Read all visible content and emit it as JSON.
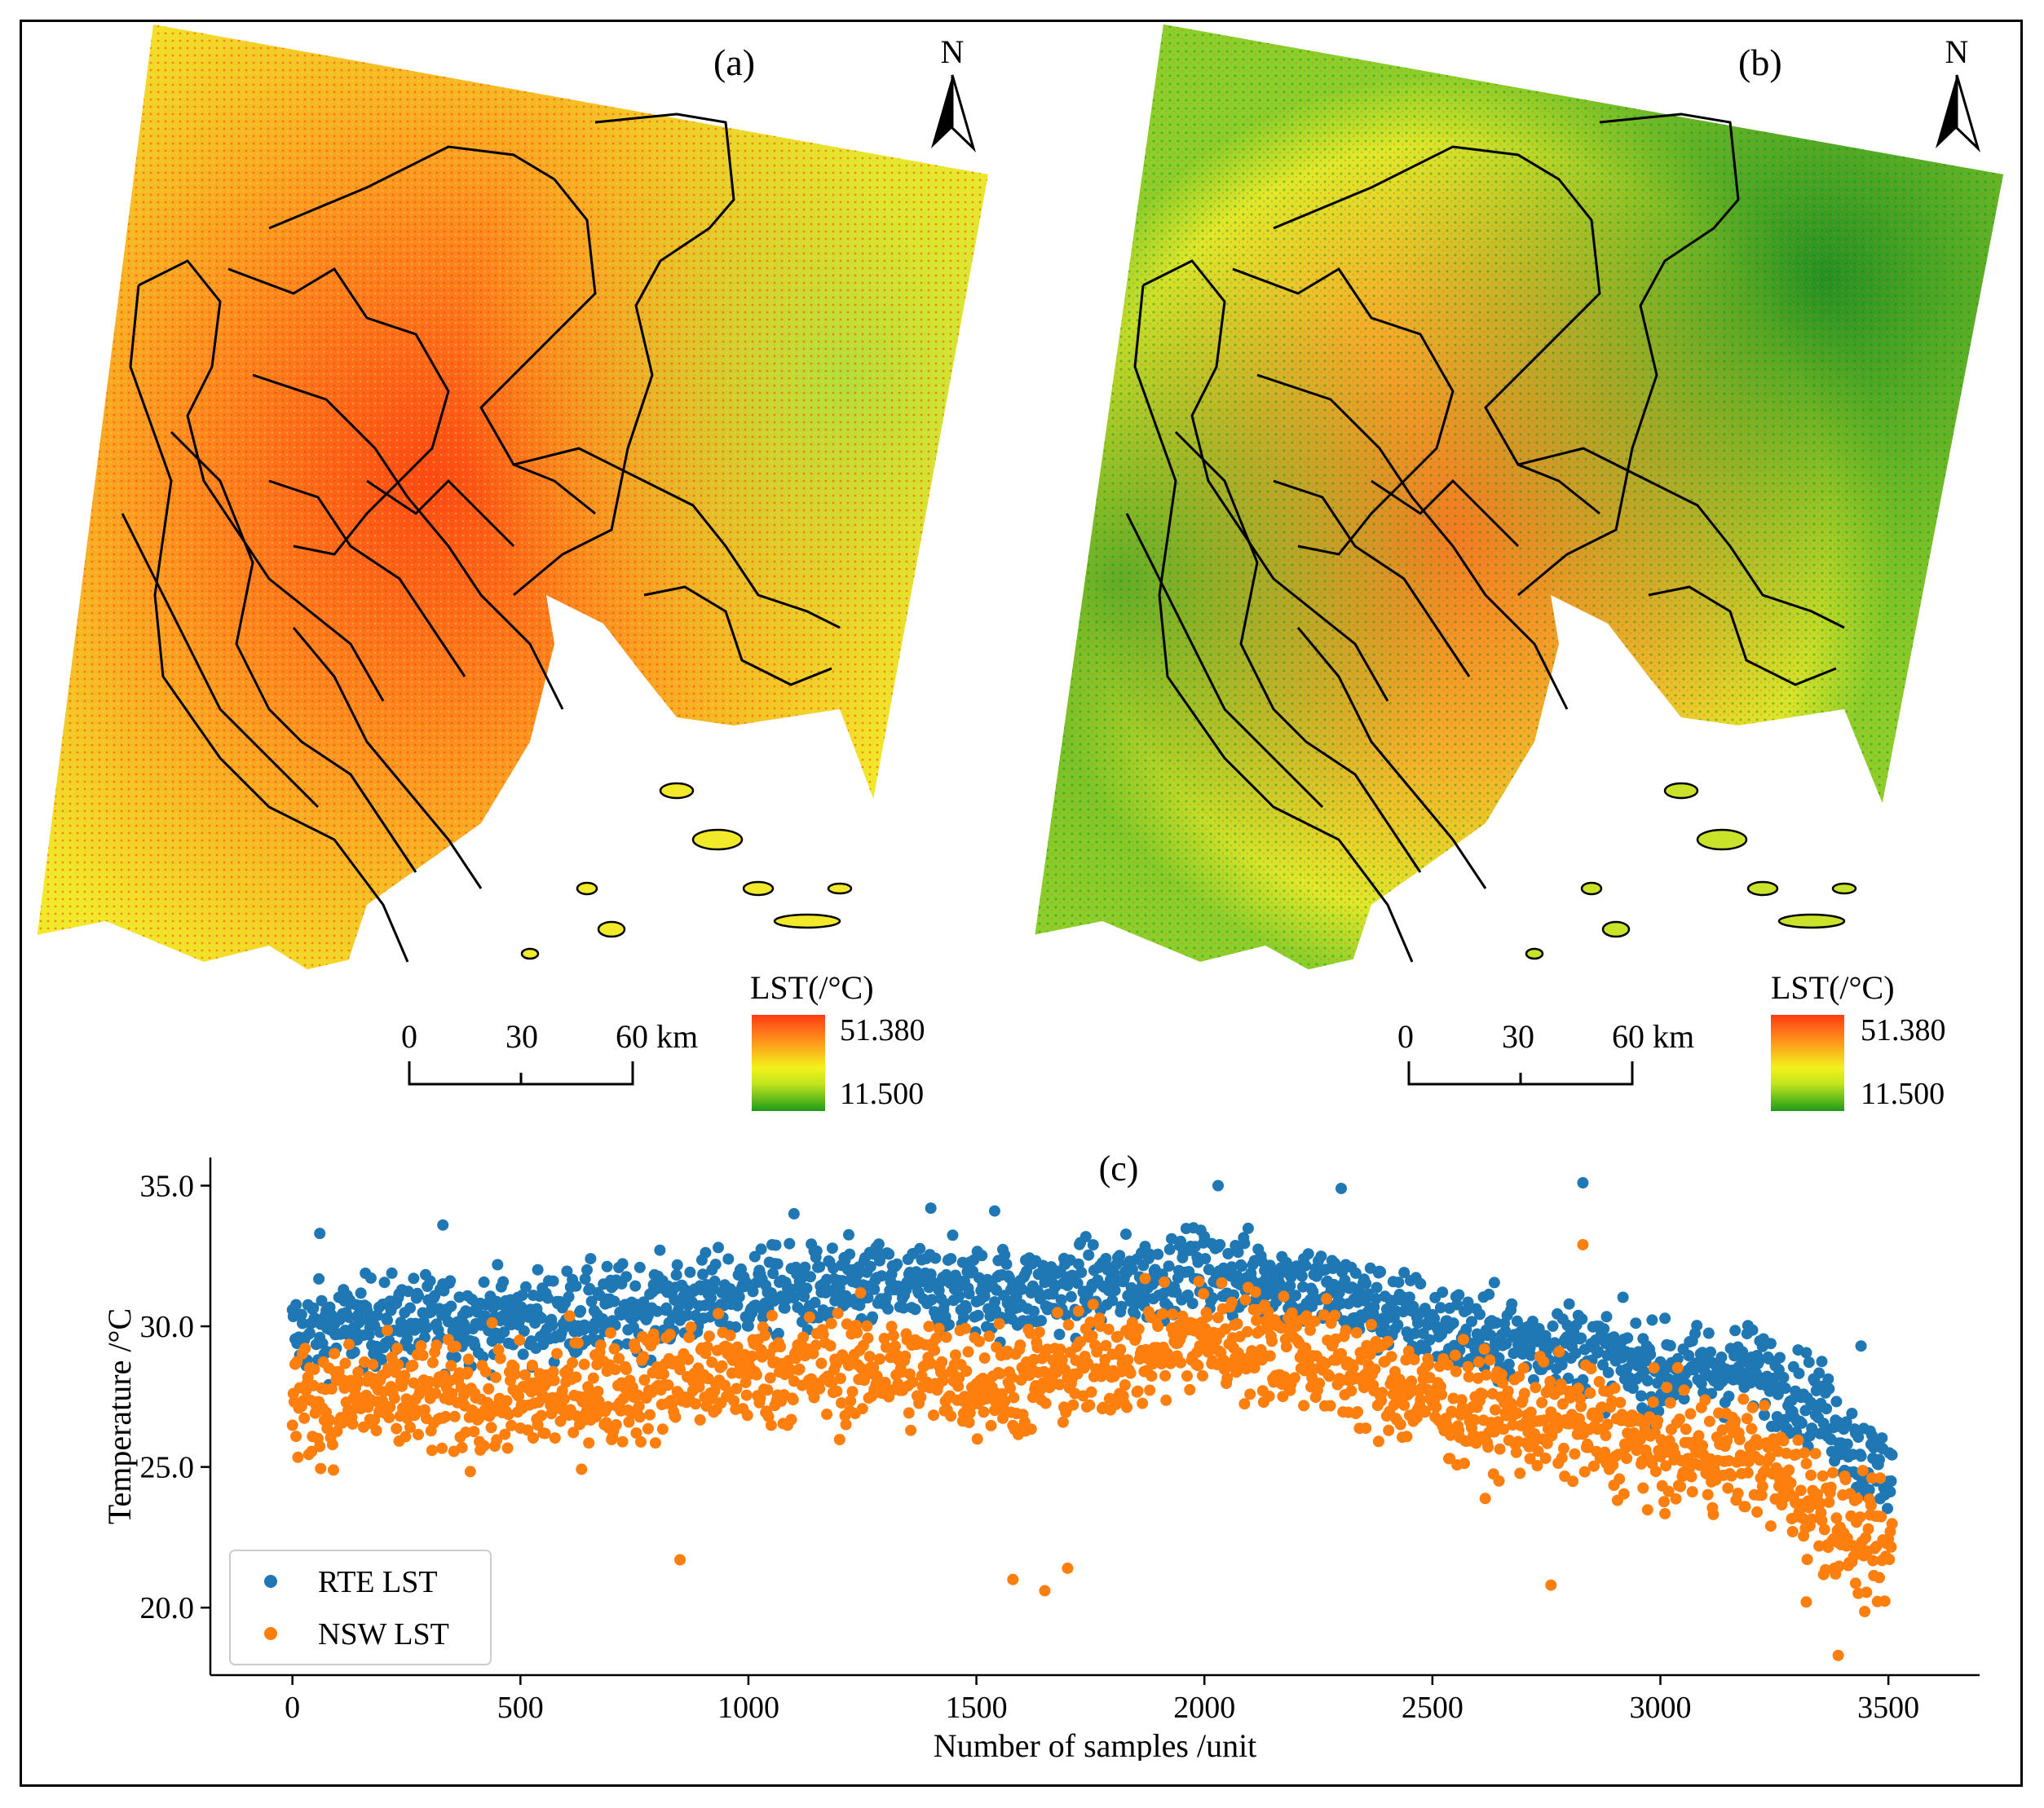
{
  "figure": {
    "panel_a": {
      "label": "(a)",
      "north_label": "N",
      "scale_ticks": [
        "0",
        "30",
        "60 km"
      ],
      "legend_title": "LST(/°C)",
      "legend_max": "51.380",
      "legend_min": "11.500",
      "colors": {
        "hot": "#ff4a14",
        "mid": "#f2e92a",
        "cool": "#7dc81e"
      }
    },
    "panel_b": {
      "label": "(b)",
      "north_label": "N",
      "scale_ticks": [
        "0",
        "30",
        "60 km"
      ],
      "legend_title": "LST(/°C)",
      "legend_max": "51.380",
      "legend_min": "11.500",
      "colors": {
        "hot": "#f47a22",
        "mid": "#dfe82a",
        "cool": "#1f8d22"
      }
    }
  },
  "chart_data": {
    "type": "scatter",
    "title": "(c)",
    "xlabel": "Number of samples /unit",
    "ylabel": "Temperature /°C",
    "xlim": [
      -180,
      3700
    ],
    "ylim": [
      17.6,
      36.0
    ],
    "xticks": [
      0,
      500,
      1000,
      1500,
      2000,
      2500,
      3000,
      3500
    ],
    "yticks": [
      20.0,
      25.0,
      30.0,
      35.0
    ],
    "ytick_labels": [
      "20.0",
      "25.0",
      "30.0",
      "35.0"
    ],
    "legend_position": "lower-left",
    "series": [
      {
        "name": "RTE LST",
        "color": "#1f77b4",
        "trend_x": [
          0,
          200,
          500,
          800,
          1000,
          1300,
          1600,
          1800,
          2000,
          2200,
          2400,
          2600,
          2800,
          3000,
          3200,
          3350,
          3450,
          3500
        ],
        "trend_y": [
          29.8,
          30.2,
          30.3,
          30.7,
          31.2,
          31.4,
          31.2,
          31.5,
          31.9,
          31.6,
          30.6,
          29.6,
          29.3,
          28.4,
          28.5,
          27.2,
          25.2,
          24.8
        ],
        "spread": 1.4,
        "extremes": [
          [
            60,
            33.3
          ],
          [
            330,
            33.6
          ],
          [
            1100,
            34.0
          ],
          [
            1400,
            34.2
          ],
          [
            1540,
            34.1
          ],
          [
            2030,
            35.0
          ],
          [
            2300,
            34.9
          ],
          [
            2830,
            35.1
          ],
          [
            3440,
            29.3
          ]
        ]
      },
      {
        "name": "NSW LST",
        "color": "#ff7f0e",
        "trend_x": [
          0,
          200,
          500,
          800,
          1000,
          1300,
          1600,
          1800,
          2000,
          2200,
          2400,
          2600,
          2800,
          3000,
          3200,
          3350,
          3450,
          3500
        ],
        "trend_y": [
          27.3,
          27.4,
          27.3,
          28.0,
          28.4,
          28.5,
          28.0,
          28.8,
          29.6,
          29.2,
          27.9,
          26.9,
          26.6,
          25.6,
          25.4,
          23.6,
          22.1,
          21.9
        ],
        "spread": 1.8,
        "extremes": [
          [
            850,
            21.7
          ],
          [
            1650,
            20.6
          ],
          [
            1700,
            21.4
          ],
          [
            1580,
            21.0
          ],
          [
            2760,
            20.8
          ],
          [
            3390,
            18.3
          ],
          [
            3320,
            20.2
          ],
          [
            2830,
            32.9
          ]
        ]
      }
    ],
    "n_samples": 3510
  }
}
